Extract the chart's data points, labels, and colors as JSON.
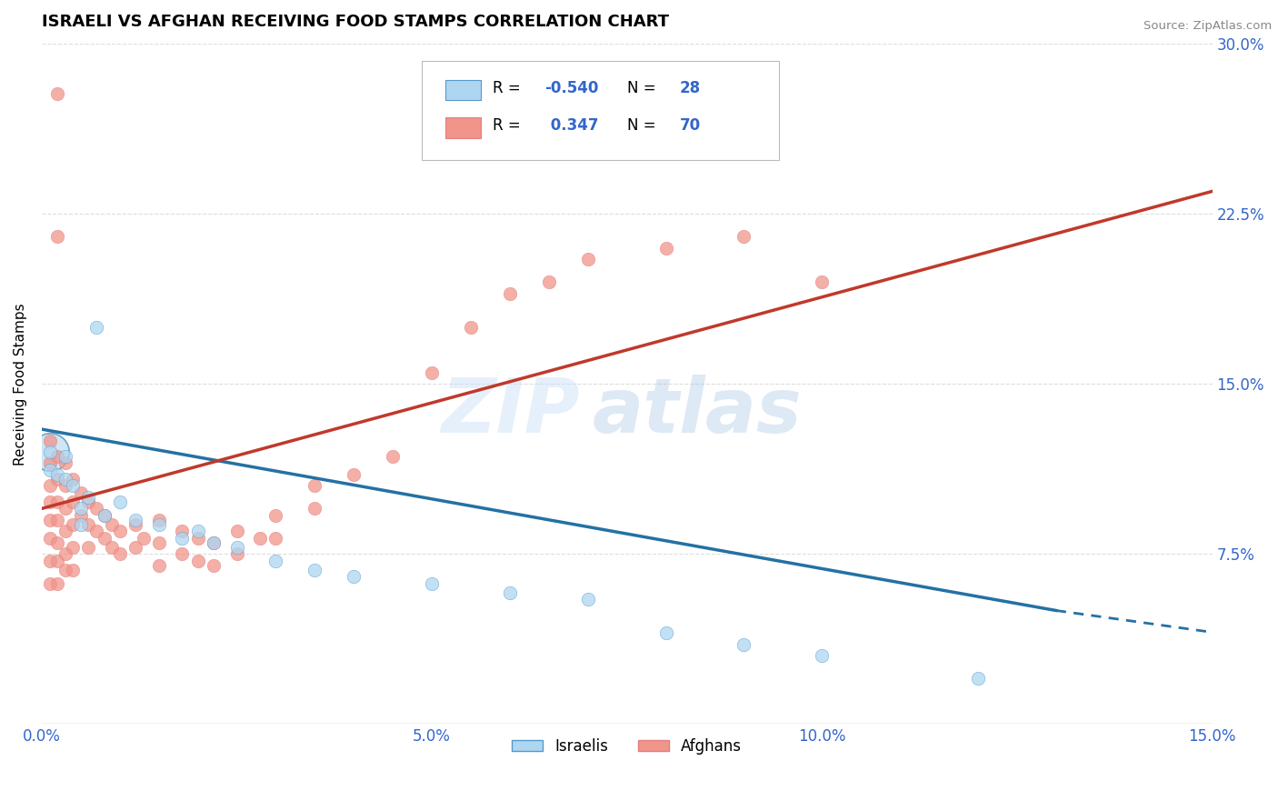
{
  "title": "ISRAELI VS AFGHAN RECEIVING FOOD STAMPS CORRELATION CHART",
  "source": "Source: ZipAtlas.com",
  "ylabel": "Receiving Food Stamps",
  "xlim": [
    0,
    0.15
  ],
  "ylim": [
    0,
    0.3
  ],
  "xticks": [
    0.0,
    0.05,
    0.1,
    0.15
  ],
  "xtick_labels": [
    "0.0%",
    "5.0%",
    "10.0%",
    "15.0%"
  ],
  "yticks": [
    0.075,
    0.15,
    0.225,
    0.3
  ],
  "ytick_labels": [
    "7.5%",
    "15.0%",
    "22.5%",
    "30.0%"
  ],
  "israeli_color": "#aed6f1",
  "afghan_color": "#f1948a",
  "israeli_line_color": "#2471a3",
  "afghan_line_color": "#c0392b",
  "R_israeli": -0.54,
  "N_israeli": 28,
  "R_afghan": 0.347,
  "N_afghan": 70,
  "watermark_zip": "ZIP",
  "watermark_atlas": "atlas",
  "israeli_scatter": [
    [
      0.001,
      0.12
    ],
    [
      0.001,
      0.112
    ],
    [
      0.002,
      0.11
    ],
    [
      0.003,
      0.118
    ],
    [
      0.003,
      0.108
    ],
    [
      0.004,
      0.105
    ],
    [
      0.005,
      0.095
    ],
    [
      0.005,
      0.088
    ],
    [
      0.006,
      0.1
    ],
    [
      0.007,
      0.175
    ],
    [
      0.008,
      0.092
    ],
    [
      0.01,
      0.098
    ],
    [
      0.012,
      0.09
    ],
    [
      0.015,
      0.088
    ],
    [
      0.018,
      0.082
    ],
    [
      0.02,
      0.085
    ],
    [
      0.022,
      0.08
    ],
    [
      0.025,
      0.078
    ],
    [
      0.03,
      0.072
    ],
    [
      0.035,
      0.068
    ],
    [
      0.04,
      0.065
    ],
    [
      0.05,
      0.062
    ],
    [
      0.06,
      0.058
    ],
    [
      0.07,
      0.055
    ],
    [
      0.08,
      0.04
    ],
    [
      0.09,
      0.035
    ],
    [
      0.1,
      0.03
    ],
    [
      0.12,
      0.02
    ]
  ],
  "afghan_scatter": [
    [
      0.001,
      0.125
    ],
    [
      0.001,
      0.115
    ],
    [
      0.001,
      0.105
    ],
    [
      0.001,
      0.098
    ],
    [
      0.001,
      0.09
    ],
    [
      0.001,
      0.082
    ],
    [
      0.001,
      0.072
    ],
    [
      0.001,
      0.062
    ],
    [
      0.002,
      0.278
    ],
    [
      0.002,
      0.215
    ],
    [
      0.002,
      0.118
    ],
    [
      0.002,
      0.108
    ],
    [
      0.002,
      0.098
    ],
    [
      0.002,
      0.09
    ],
    [
      0.002,
      0.08
    ],
    [
      0.002,
      0.072
    ],
    [
      0.002,
      0.062
    ],
    [
      0.003,
      0.115
    ],
    [
      0.003,
      0.105
    ],
    [
      0.003,
      0.095
    ],
    [
      0.003,
      0.085
    ],
    [
      0.003,
      0.075
    ],
    [
      0.003,
      0.068
    ],
    [
      0.004,
      0.108
    ],
    [
      0.004,
      0.098
    ],
    [
      0.004,
      0.088
    ],
    [
      0.004,
      0.078
    ],
    [
      0.004,
      0.068
    ],
    [
      0.005,
      0.102
    ],
    [
      0.005,
      0.092
    ],
    [
      0.006,
      0.098
    ],
    [
      0.006,
      0.088
    ],
    [
      0.006,
      0.078
    ],
    [
      0.007,
      0.095
    ],
    [
      0.007,
      0.085
    ],
    [
      0.008,
      0.092
    ],
    [
      0.008,
      0.082
    ],
    [
      0.009,
      0.088
    ],
    [
      0.009,
      0.078
    ],
    [
      0.01,
      0.085
    ],
    [
      0.01,
      0.075
    ],
    [
      0.012,
      0.088
    ],
    [
      0.012,
      0.078
    ],
    [
      0.013,
      0.082
    ],
    [
      0.015,
      0.09
    ],
    [
      0.015,
      0.08
    ],
    [
      0.015,
      0.07
    ],
    [
      0.018,
      0.085
    ],
    [
      0.018,
      0.075
    ],
    [
      0.02,
      0.082
    ],
    [
      0.02,
      0.072
    ],
    [
      0.022,
      0.08
    ],
    [
      0.022,
      0.07
    ],
    [
      0.025,
      0.085
    ],
    [
      0.025,
      0.075
    ],
    [
      0.028,
      0.082
    ],
    [
      0.03,
      0.092
    ],
    [
      0.03,
      0.082
    ],
    [
      0.035,
      0.105
    ],
    [
      0.035,
      0.095
    ],
    [
      0.04,
      0.11
    ],
    [
      0.045,
      0.118
    ],
    [
      0.05,
      0.155
    ],
    [
      0.055,
      0.175
    ],
    [
      0.06,
      0.19
    ],
    [
      0.065,
      0.195
    ],
    [
      0.07,
      0.205
    ],
    [
      0.08,
      0.21
    ],
    [
      0.09,
      0.215
    ],
    [
      0.1,
      0.195
    ]
  ],
  "israeli_line": [
    [
      0.0,
      0.13
    ],
    [
      0.13,
      0.05
    ]
  ],
  "afghan_line": [
    [
      0.0,
      0.095
    ],
    [
      0.15,
      0.235
    ]
  ],
  "israeli_line_dashed": [
    [
      0.13,
      0.05
    ],
    [
      0.155,
      0.038
    ]
  ]
}
